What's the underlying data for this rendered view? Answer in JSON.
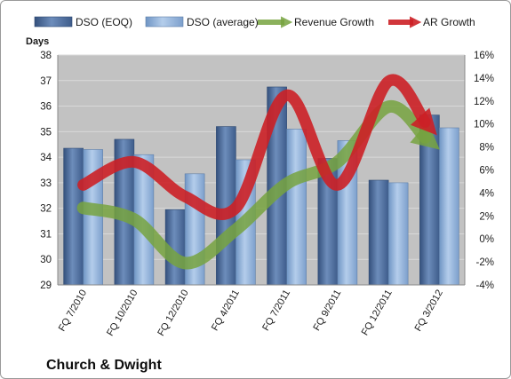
{
  "chart_data": {
    "type": "bar",
    "title": "Church & Dwight",
    "ylabel": "Days",
    "categories": [
      "FQ 7/2010",
      "FQ 10/2010",
      "FQ 12/2010",
      "FQ 4/2011",
      "FQ 7/2011",
      "FQ 9/2011",
      "FQ 12/2011",
      "FQ 3/2012"
    ],
    "ylim": [
      29,
      38
    ],
    "y_ticks": [
      "29",
      "30",
      "31",
      "32",
      "33",
      "34",
      "35",
      "36",
      "37",
      "38"
    ],
    "y2lim": [
      -4,
      16
    ],
    "y2_ticks": [
      "-4%",
      "-2%",
      "0%",
      "2%",
      "4%",
      "6%",
      "8%",
      "10%",
      "12%",
      "14%",
      "16%"
    ],
    "series": [
      {
        "name": "DSO (EOQ)",
        "type": "bar",
        "axis": "left",
        "values": [
          34.35,
          34.7,
          31.95,
          35.2,
          36.75,
          33.95,
          33.1,
          35.65
        ]
      },
      {
        "name": "DSO (average)",
        "type": "bar",
        "axis": "left",
        "values": [
          34.3,
          34.1,
          33.35,
          33.9,
          35.1,
          34.65,
          33.0,
          35.15
        ]
      },
      {
        "name": "Revenue Growth",
        "type": "line",
        "axis": "right",
        "unit": "%",
        "values": [
          2.7,
          1.7,
          -2.1,
          0.8,
          4.8,
          6.7,
          11.5,
          7.8
        ]
      },
      {
        "name": "AR Growth",
        "type": "line",
        "axis": "right",
        "unit": "%",
        "values": [
          4.7,
          6.7,
          3.7,
          2.7,
          12.5,
          4.7,
          13.7,
          8.8
        ]
      }
    ],
    "grid": true,
    "legend_position": "top",
    "colors": {
      "dso_eoq": "#4a6b9e",
      "dso_avg": "#8eb1da",
      "revenue_growth": "#77a33f",
      "ar_growth": "#cc2026",
      "plot_background": "#c2c2c2"
    }
  }
}
